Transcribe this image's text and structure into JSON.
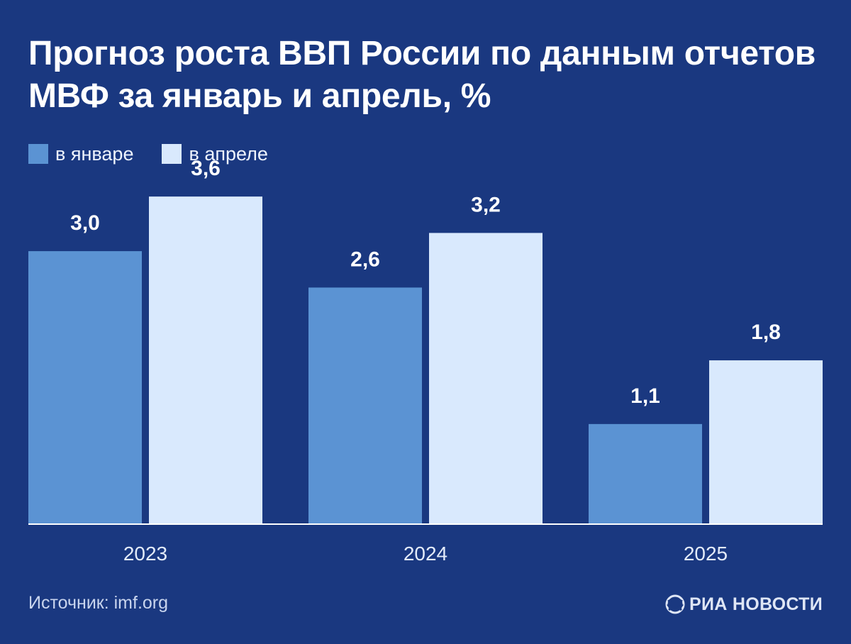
{
  "header": {
    "title": "Прогноз роста ВВП России по данным отчетов МВФ за январь и апрель, %"
  },
  "legend": {
    "january_label": "в январе",
    "april_label": "в апреле"
  },
  "colors": {
    "background": "#1a3880",
    "january": "#5b93d3",
    "april": "#d9e9fd",
    "baseline": "#ffffff",
    "tick_label": "#e3ebf9"
  },
  "chart_data": {
    "type": "bar",
    "title": "Прогноз роста ВВП России по данным отчетов МВФ за январь и апрель, %",
    "categories": [
      "2023",
      "2024",
      "2025"
    ],
    "series": [
      {
        "name": "в январе",
        "values": [
          3.0,
          2.6,
          1.1
        ],
        "labels": [
          "3,0",
          "2,6",
          "1,1"
        ]
      },
      {
        "name": "в апреле",
        "values": [
          3.6,
          3.2,
          1.8
        ],
        "labels": [
          "3,6",
          "3,2",
          "1,8"
        ]
      }
    ],
    "xlabel": "",
    "ylabel": "",
    "grid": false,
    "legend_position": "top-left"
  },
  "footer": {
    "source": "Источник: imf.org",
    "logo_text": "РИА НОВОСТИ"
  }
}
